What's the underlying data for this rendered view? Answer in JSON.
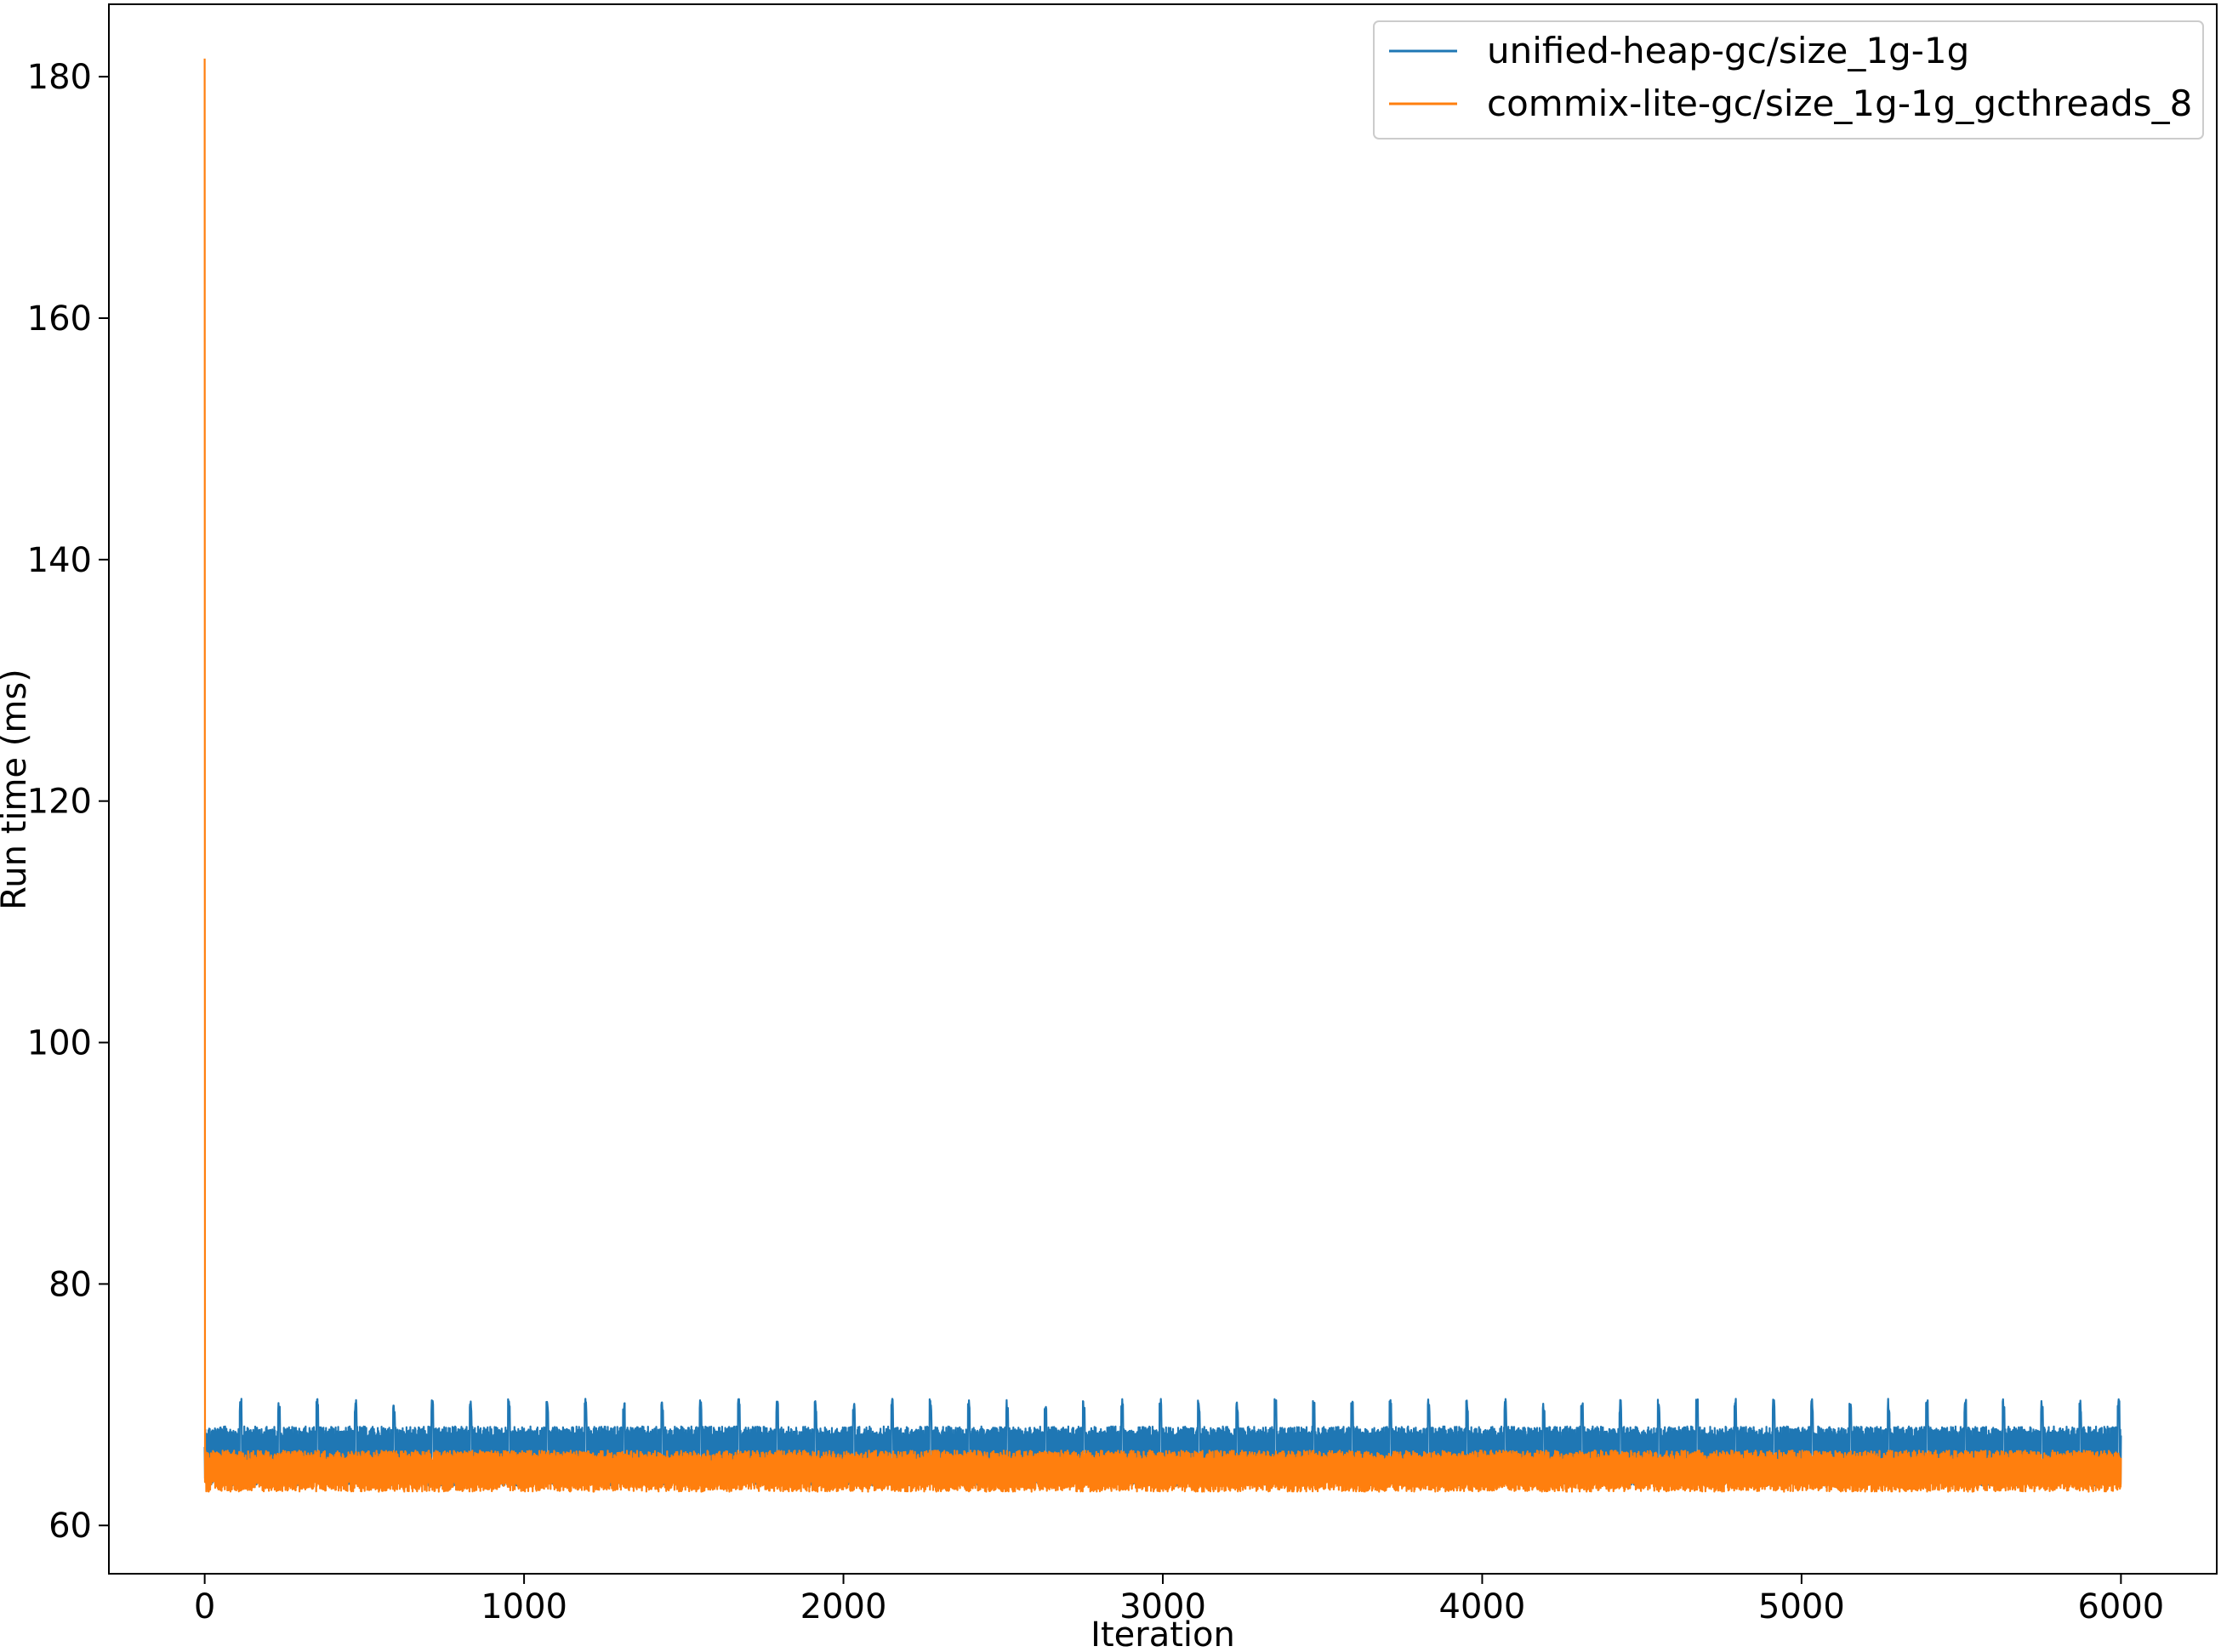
{
  "chart_data": {
    "type": "line",
    "title": "",
    "xlabel": "Iteration",
    "ylabel": "Run time (ms)",
    "xlim": [
      -300,
      6300
    ],
    "ylim": [
      56,
      186
    ],
    "xticks": [
      0,
      1000,
      2000,
      3000,
      4000,
      5000,
      6000
    ],
    "yticks": [
      60,
      80,
      100,
      120,
      140,
      160,
      180
    ],
    "grid": false,
    "legend_position": "top-right",
    "series": [
      {
        "name": "unified-heap-gc/size_1g-1g",
        "color": "#1f77b4",
        "x_range": [
          0,
          6000
        ],
        "baseline_band": [
          63.3,
          68.2
        ],
        "spike_value": 70.5,
        "spike_period_iterations": 120,
        "first_spike_iteration": 110,
        "first_value": 66.5
      },
      {
        "name": "commix-lite-gc/size_1g-1g_gcthreads_8",
        "color": "#ff7f0e",
        "x_range": [
          0,
          6000
        ],
        "baseline_band": [
          62.8,
          66.2
        ],
        "first_value": 181.5
      }
    ]
  }
}
